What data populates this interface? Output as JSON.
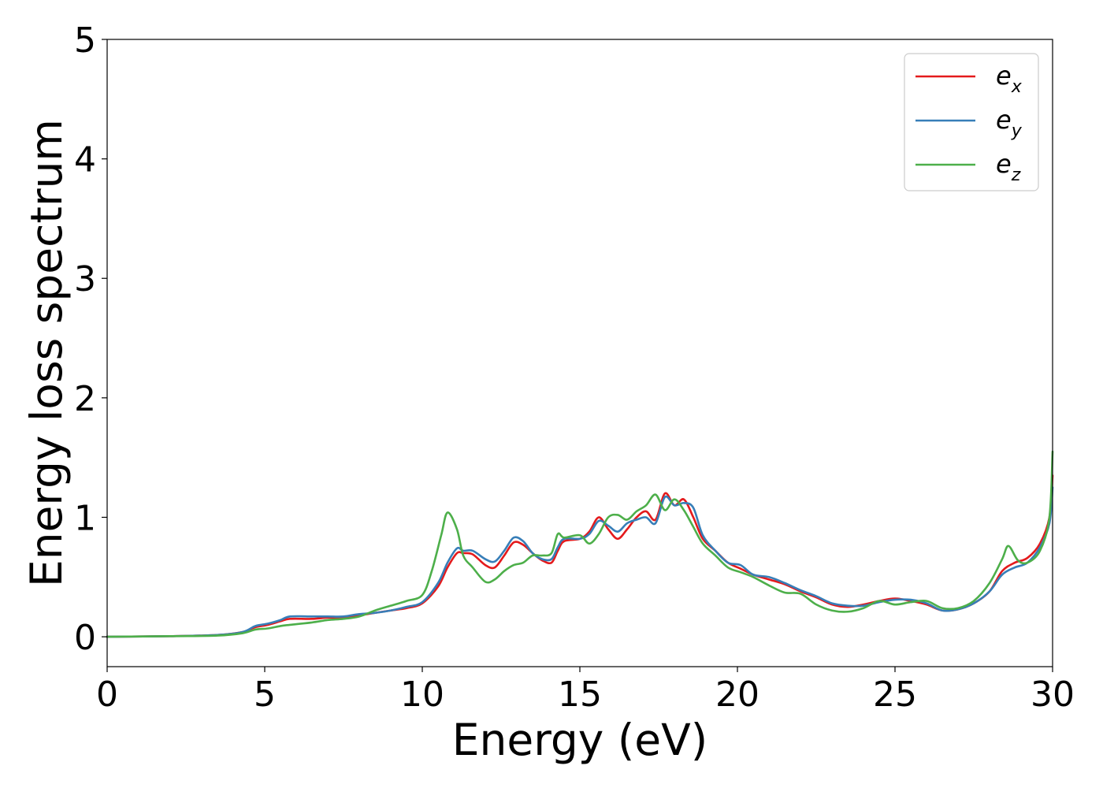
{
  "chart_data": {
    "type": "line",
    "xlabel": "Energy (eV)",
    "ylabel": "Energy loss spectrum",
    "xlim": [
      0,
      30
    ],
    "ylim": [
      -0.25,
      5
    ],
    "xticks": [
      0,
      5,
      10,
      15,
      20,
      25,
      30
    ],
    "yticks": [
      0,
      1,
      2,
      3,
      4,
      5
    ],
    "grid": false,
    "legend_position": "top-right",
    "series": [
      {
        "name": "e_x",
        "base": "e",
        "sub": "x",
        "color": "#e41a1c",
        "points": [
          [
            0,
            0
          ],
          [
            2,
            0.005
          ],
          [
            3.5,
            0.015
          ],
          [
            4.3,
            0.04
          ],
          [
            4.7,
            0.08
          ],
          [
            5.1,
            0.1
          ],
          [
            5.5,
            0.13
          ],
          [
            5.8,
            0.15
          ],
          [
            6.5,
            0.15
          ],
          [
            7,
            0.16
          ],
          [
            7.5,
            0.16
          ],
          [
            8,
            0.18
          ],
          [
            8.5,
            0.2
          ],
          [
            9,
            0.22
          ],
          [
            9.5,
            0.24
          ],
          [
            10,
            0.28
          ],
          [
            10.5,
            0.42
          ],
          [
            10.8,
            0.58
          ],
          [
            11.1,
            0.7
          ],
          [
            11.3,
            0.7
          ],
          [
            11.6,
            0.69
          ],
          [
            12,
            0.6
          ],
          [
            12.3,
            0.58
          ],
          [
            12.6,
            0.68
          ],
          [
            12.9,
            0.79
          ],
          [
            13.2,
            0.77
          ],
          [
            13.5,
            0.7
          ],
          [
            13.8,
            0.64
          ],
          [
            14.1,
            0.62
          ],
          [
            14.3,
            0.72
          ],
          [
            14.5,
            0.8
          ],
          [
            15,
            0.82
          ],
          [
            15.3,
            0.88
          ],
          [
            15.6,
            1.0
          ],
          [
            15.9,
            0.9
          ],
          [
            16.2,
            0.82
          ],
          [
            16.5,
            0.9
          ],
          [
            16.8,
            1.0
          ],
          [
            17.1,
            1.05
          ],
          [
            17.4,
            0.98
          ],
          [
            17.7,
            1.2
          ],
          [
            18,
            1.1
          ],
          [
            18.3,
            1.15
          ],
          [
            18.6,
            1.0
          ],
          [
            18.9,
            0.82
          ],
          [
            19.3,
            0.72
          ],
          [
            19.7,
            0.62
          ],
          [
            20.1,
            0.57
          ],
          [
            20.5,
            0.52
          ],
          [
            21,
            0.48
          ],
          [
            21.5,
            0.44
          ],
          [
            22,
            0.38
          ],
          [
            22.5,
            0.33
          ],
          [
            23,
            0.27
          ],
          [
            23.5,
            0.25
          ],
          [
            24,
            0.27
          ],
          [
            24.5,
            0.3
          ],
          [
            25,
            0.32
          ],
          [
            25.5,
            0.3
          ],
          [
            26,
            0.27
          ],
          [
            26.5,
            0.22
          ],
          [
            27,
            0.23
          ],
          [
            27.5,
            0.28
          ],
          [
            28,
            0.38
          ],
          [
            28.4,
            0.55
          ],
          [
            28.8,
            0.62
          ],
          [
            29.2,
            0.66
          ],
          [
            29.6,
            0.78
          ],
          [
            29.9,
            1.0
          ],
          [
            30,
            1.35
          ]
        ]
      },
      {
        "name": "e_y",
        "base": "e",
        "sub": "y",
        "color": "#377eb8",
        "points": [
          [
            0,
            0
          ],
          [
            2,
            0.005
          ],
          [
            3.5,
            0.015
          ],
          [
            4.3,
            0.04
          ],
          [
            4.7,
            0.09
          ],
          [
            5.1,
            0.11
          ],
          [
            5.5,
            0.14
          ],
          [
            5.8,
            0.17
          ],
          [
            6.5,
            0.17
          ],
          [
            7,
            0.17
          ],
          [
            7.5,
            0.17
          ],
          [
            8,
            0.19
          ],
          [
            8.5,
            0.2
          ],
          [
            9,
            0.22
          ],
          [
            9.5,
            0.25
          ],
          [
            10,
            0.29
          ],
          [
            10.5,
            0.45
          ],
          [
            10.8,
            0.62
          ],
          [
            11.1,
            0.74
          ],
          [
            11.3,
            0.72
          ],
          [
            11.6,
            0.72
          ],
          [
            12,
            0.65
          ],
          [
            12.3,
            0.63
          ],
          [
            12.6,
            0.72
          ],
          [
            12.9,
            0.83
          ],
          [
            13.2,
            0.8
          ],
          [
            13.5,
            0.7
          ],
          [
            13.8,
            0.65
          ],
          [
            14.1,
            0.65
          ],
          [
            14.3,
            0.75
          ],
          [
            14.5,
            0.82
          ],
          [
            15,
            0.82
          ],
          [
            15.3,
            0.86
          ],
          [
            15.6,
            0.97
          ],
          [
            15.9,
            0.93
          ],
          [
            16.2,
            0.88
          ],
          [
            16.5,
            0.95
          ],
          [
            16.8,
            0.98
          ],
          [
            17.1,
            1.0
          ],
          [
            17.4,
            0.95
          ],
          [
            17.7,
            1.17
          ],
          [
            18,
            1.1
          ],
          [
            18.3,
            1.12
          ],
          [
            18.6,
            1.08
          ],
          [
            18.9,
            0.85
          ],
          [
            19.3,
            0.72
          ],
          [
            19.7,
            0.62
          ],
          [
            20.1,
            0.6
          ],
          [
            20.5,
            0.52
          ],
          [
            21,
            0.5
          ],
          [
            21.5,
            0.45
          ],
          [
            22,
            0.39
          ],
          [
            22.5,
            0.34
          ],
          [
            23,
            0.28
          ],
          [
            23.5,
            0.26
          ],
          [
            24,
            0.26
          ],
          [
            24.5,
            0.29
          ],
          [
            25,
            0.31
          ],
          [
            25.5,
            0.31
          ],
          [
            26,
            0.28
          ],
          [
            26.5,
            0.22
          ],
          [
            27,
            0.23
          ],
          [
            27.5,
            0.28
          ],
          [
            28,
            0.38
          ],
          [
            28.4,
            0.52
          ],
          [
            28.8,
            0.58
          ],
          [
            29.2,
            0.62
          ],
          [
            29.6,
            0.75
          ],
          [
            29.9,
            0.95
          ],
          [
            30,
            1.25
          ]
        ]
      },
      {
        "name": "e_z",
        "base": "e",
        "sub": "z",
        "color": "#4daf4a",
        "points": [
          [
            0,
            0
          ],
          [
            2,
            0.005
          ],
          [
            3.5,
            0.01
          ],
          [
            4.3,
            0.03
          ],
          [
            4.7,
            0.06
          ],
          [
            5.1,
            0.07
          ],
          [
            5.5,
            0.09
          ],
          [
            5.8,
            0.1
          ],
          [
            6.5,
            0.12
          ],
          [
            7,
            0.14
          ],
          [
            7.5,
            0.15
          ],
          [
            8,
            0.17
          ],
          [
            8.5,
            0.22
          ],
          [
            9,
            0.26
          ],
          [
            9.5,
            0.3
          ],
          [
            10,
            0.35
          ],
          [
            10.3,
            0.55
          ],
          [
            10.6,
            0.85
          ],
          [
            10.8,
            1.04
          ],
          [
            11.1,
            0.9
          ],
          [
            11.3,
            0.68
          ],
          [
            11.6,
            0.58
          ],
          [
            12,
            0.46
          ],
          [
            12.3,
            0.48
          ],
          [
            12.6,
            0.55
          ],
          [
            12.9,
            0.6
          ],
          [
            13.2,
            0.62
          ],
          [
            13.5,
            0.68
          ],
          [
            13.8,
            0.68
          ],
          [
            14.1,
            0.7
          ],
          [
            14.3,
            0.86
          ],
          [
            14.5,
            0.83
          ],
          [
            15,
            0.85
          ],
          [
            15.3,
            0.78
          ],
          [
            15.6,
            0.86
          ],
          [
            15.9,
            1.0
          ],
          [
            16.2,
            1.02
          ],
          [
            16.5,
            0.98
          ],
          [
            16.8,
            1.05
          ],
          [
            17.1,
            1.1
          ],
          [
            17.4,
            1.19
          ],
          [
            17.7,
            1.06
          ],
          [
            18,
            1.15
          ],
          [
            18.3,
            1.06
          ],
          [
            18.6,
            0.92
          ],
          [
            18.9,
            0.78
          ],
          [
            19.3,
            0.68
          ],
          [
            19.7,
            0.58
          ],
          [
            20.1,
            0.54
          ],
          [
            20.5,
            0.5
          ],
          [
            21,
            0.43
          ],
          [
            21.5,
            0.37
          ],
          [
            22,
            0.36
          ],
          [
            22.5,
            0.27
          ],
          [
            23,
            0.22
          ],
          [
            23.5,
            0.21
          ],
          [
            24,
            0.24
          ],
          [
            24.5,
            0.3
          ],
          [
            25,
            0.27
          ],
          [
            25.5,
            0.29
          ],
          [
            26,
            0.3
          ],
          [
            26.5,
            0.24
          ],
          [
            27,
            0.24
          ],
          [
            27.5,
            0.3
          ],
          [
            28,
            0.45
          ],
          [
            28.4,
            0.65
          ],
          [
            28.6,
            0.76
          ],
          [
            28.9,
            0.64
          ],
          [
            29.2,
            0.62
          ],
          [
            29.6,
            0.72
          ],
          [
            29.9,
            1.0
          ],
          [
            30,
            1.55
          ]
        ]
      }
    ]
  }
}
